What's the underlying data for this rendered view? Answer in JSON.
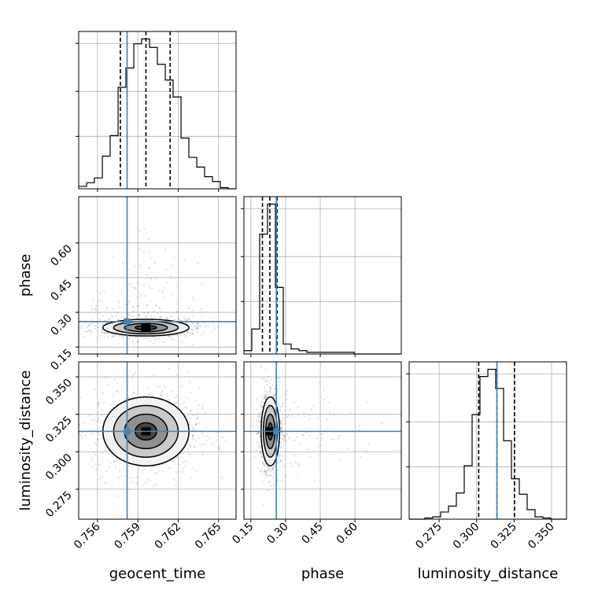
{
  "chart_data": {
    "type": "corner",
    "parameters": [
      "geocent_time",
      "phase",
      "luminosity_distance"
    ],
    "truths": {
      "geocent_time": 0.7582,
      "phase": 0.26,
      "luminosity_distance": 0.3136
    },
    "truth_color": "#4682b4",
    "axes": {
      "geocent_time": {
        "range": [
          0.7546,
          0.7663
        ],
        "ticks": [
          0.756,
          0.759,
          0.762,
          0.765
        ],
        "tick_labels": [
          "0.756",
          "0.759",
          "0.762",
          "0.765"
        ]
      },
      "phase": {
        "range": [
          0.12,
          0.8
        ],
        "ticks": [
          0.15,
          0.3,
          0.45,
          0.6
        ],
        "tick_labels": [
          "0.15",
          "0.30",
          "0.45",
          "0.60"
        ]
      },
      "luminosity_distance": {
        "range": [
          0.255,
          0.36
        ],
        "ticks": [
          0.275,
          0.3,
          0.325,
          0.35
        ],
        "tick_labels": [
          "0.275",
          "0.300",
          "0.325",
          "0.350"
        ]
      }
    },
    "histograms": {
      "geocent_time": {
        "bin_edges": [
          0.7546,
          0.75519,
          0.75577,
          0.75636,
          0.75694,
          0.75753,
          0.75811,
          0.7587,
          0.75928,
          0.75987,
          0.76045,
          0.76104,
          0.76162,
          0.76221,
          0.76279,
          0.76338,
          0.76396,
          0.76455,
          0.76513,
          0.76572,
          0.7663
        ],
        "counts": [
          2,
          5,
          9,
          27,
          44,
          84,
          100,
          120,
          124,
          117,
          103,
          90,
          76,
          42,
          26,
          18,
          10,
          6,
          1,
          0
        ],
        "quantiles": [
          0.7577,
          0.7596,
          0.7614
        ]
      },
      "phase": {
        "bin_edges": [
          0.12,
          0.154,
          0.188,
          0.222,
          0.256,
          0.29,
          0.324,
          0.358,
          0.392,
          0.426,
          0.46,
          0.494,
          0.528,
          0.562,
          0.596,
          0.63,
          0.664,
          0.698,
          0.732,
          0.766,
          0.8
        ],
        "counts": [
          2,
          15,
          72,
          90,
          40,
          6,
          3,
          2,
          1,
          1,
          1,
          1,
          1,
          1,
          0,
          0,
          0,
          0,
          0,
          0
        ],
        "quantiles": [
          0.2,
          0.232,
          0.263
        ]
      },
      "luminosity_distance": {
        "bin_edges": [
          0.255,
          0.26025,
          0.2655,
          0.27075,
          0.276,
          0.28125,
          0.2865,
          0.29175,
          0.297,
          0.30225,
          0.3075,
          0.31275,
          0.318,
          0.32325,
          0.3285,
          0.33375,
          0.339,
          0.34425,
          0.3495,
          0.35475,
          0.36
        ],
        "counts": [
          0,
          0,
          1,
          2,
          6,
          11,
          22,
          45,
          88,
          120,
          126,
          110,
          66,
          34,
          21,
          8,
          2,
          1,
          0,
          0
        ],
        "quantiles": [
          0.3014,
          0.3136,
          0.3253
        ]
      }
    },
    "pairs": [
      {
        "x": "geocent_time",
        "y": "phase",
        "center": [
          0.7596,
          0.234
        ],
        "spread": [
          0.0016,
          0.018
        ]
      },
      {
        "x": "geocent_time",
        "y": "luminosity_distance",
        "center": [
          0.7596,
          0.3136
        ],
        "spread": [
          0.0016,
          0.0115
        ]
      },
      {
        "x": "phase",
        "y": "luminosity_distance",
        "center": [
          0.234,
          0.3136
        ],
        "spread": [
          0.02,
          0.0115
        ]
      }
    ],
    "contour_levels_sigma": [
      0.5,
      1.0,
      1.5,
      2.0
    ],
    "grid": true
  }
}
